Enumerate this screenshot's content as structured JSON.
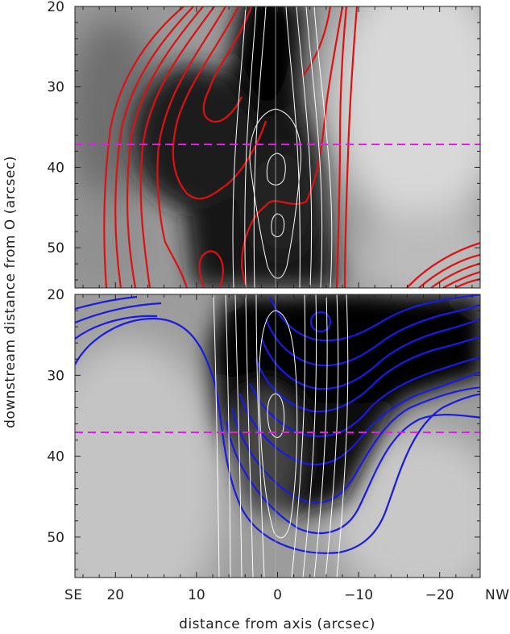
{
  "chart_data": [
    {
      "type": "contour",
      "panel": "upper",
      "xlabel": "distance from axis (arcsec)",
      "ylabel": "downstream distance from O (arcsec)",
      "xlim": [
        25,
        -25
      ],
      "ylim": [
        20,
        55
      ],
      "y_ticks": [
        20,
        30,
        40,
        50
      ],
      "y_tick_labels": [
        "20",
        "30",
        "40",
        "50"
      ],
      "contour_color": "#dd1111",
      "white_contour_color": "#ffffff",
      "dashed_line": {
        "y": 37,
        "color": "#e020e0"
      },
      "axis_line_x": 0
    },
    {
      "type": "contour",
      "panel": "lower",
      "xlim": [
        25,
        -25
      ],
      "ylim": [
        20,
        55
      ],
      "x_ticks": [
        20,
        10,
        0,
        -10,
        -20
      ],
      "x_tick_labels": [
        "20",
        "10",
        "0",
        "−10",
        "−20"
      ],
      "y_ticks": [
        20,
        30,
        40,
        50
      ],
      "y_tick_labels": [
        "20",
        "30",
        "40",
        "50"
      ],
      "contour_color": "#1a1ae0",
      "white_contour_color": "#ffffff",
      "dashed_line": {
        "y": 37,
        "color": "#e020e0"
      },
      "axis_line_x": 0
    }
  ],
  "labels": {
    "left_direction": "SE",
    "right_direction": "NW",
    "xlabel": "distance from axis (arcsec)",
    "ylabel": "downstream distance from O (arcsec)"
  }
}
